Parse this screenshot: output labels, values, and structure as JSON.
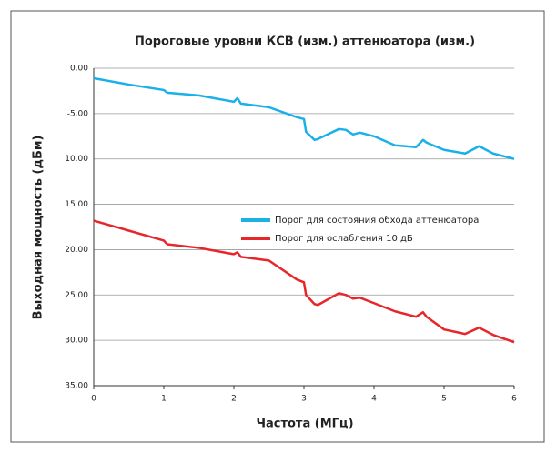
{
  "chart_data": {
    "type": "line",
    "title": "Пороговые уровни КСВ (изм.) аттенюатора (изм.)",
    "x_label": "Частота (МГц)",
    "y_label": "Выходная мощность (дБм)",
    "x": [
      0,
      0.5,
      1,
      1.05,
      1.5,
      2,
      2.05,
      2.1,
      2.5,
      2.9,
      3.0,
      3.03,
      3.15,
      3.2,
      3.5,
      3.6,
      3.7,
      3.8,
      4.0,
      4.3,
      4.6,
      4.7,
      4.75,
      5.0,
      5.3,
      5.5,
      5.7,
      6
    ],
    "series": [
      {
        "name": "Порог для состояния обхода аттенюатора",
        "color": "#1ab0e8",
        "values": [
          -1.1,
          -1.8,
          -2.4,
          -2.7,
          -3.0,
          -3.7,
          -3.3,
          -3.9,
          -4.3,
          -5.4,
          -5.6,
          -7.0,
          -7.9,
          -7.8,
          -6.7,
          -6.8,
          -7.3,
          -7.1,
          -7.5,
          -8.5,
          -8.7,
          -7.9,
          -8.2,
          -9.0,
          -9.4,
          -8.6,
          -9.4,
          -10.0
        ]
      },
      {
        "name": "Порог для ослабления 10 дБ",
        "color": "#e8262a",
        "values": [
          -16.8,
          -17.9,
          -19.0,
          -19.4,
          -19.8,
          -20.5,
          -20.3,
          -20.8,
          -21.2,
          -23.3,
          -23.6,
          -25.0,
          -26.0,
          -26.1,
          -24.8,
          -25.0,
          -25.4,
          -25.3,
          -25.9,
          -26.8,
          -27.4,
          -26.9,
          -27.4,
          -28.8,
          -29.3,
          -28.6,
          -29.4,
          -30.2
        ]
      }
    ],
    "xlim": [
      0,
      6
    ],
    "xticks": [
      0,
      1,
      2,
      3,
      4,
      5,
      6
    ],
    "ylim": [
      -35,
      0
    ],
    "yticks": [
      {
        "value": 0,
        "label": "0.00"
      },
      {
        "value": -5,
        "label": "-5.00"
      },
      {
        "value": -10,
        "label": "10.00"
      },
      {
        "value": -15,
        "label": "15.00"
      },
      {
        "value": -20,
        "label": "20.00"
      },
      {
        "value": -25,
        "label": "25.00"
      },
      {
        "value": -30,
        "label": "30.00"
      },
      {
        "value": -35,
        "label": "35.00"
      }
    ],
    "grid": true
  }
}
